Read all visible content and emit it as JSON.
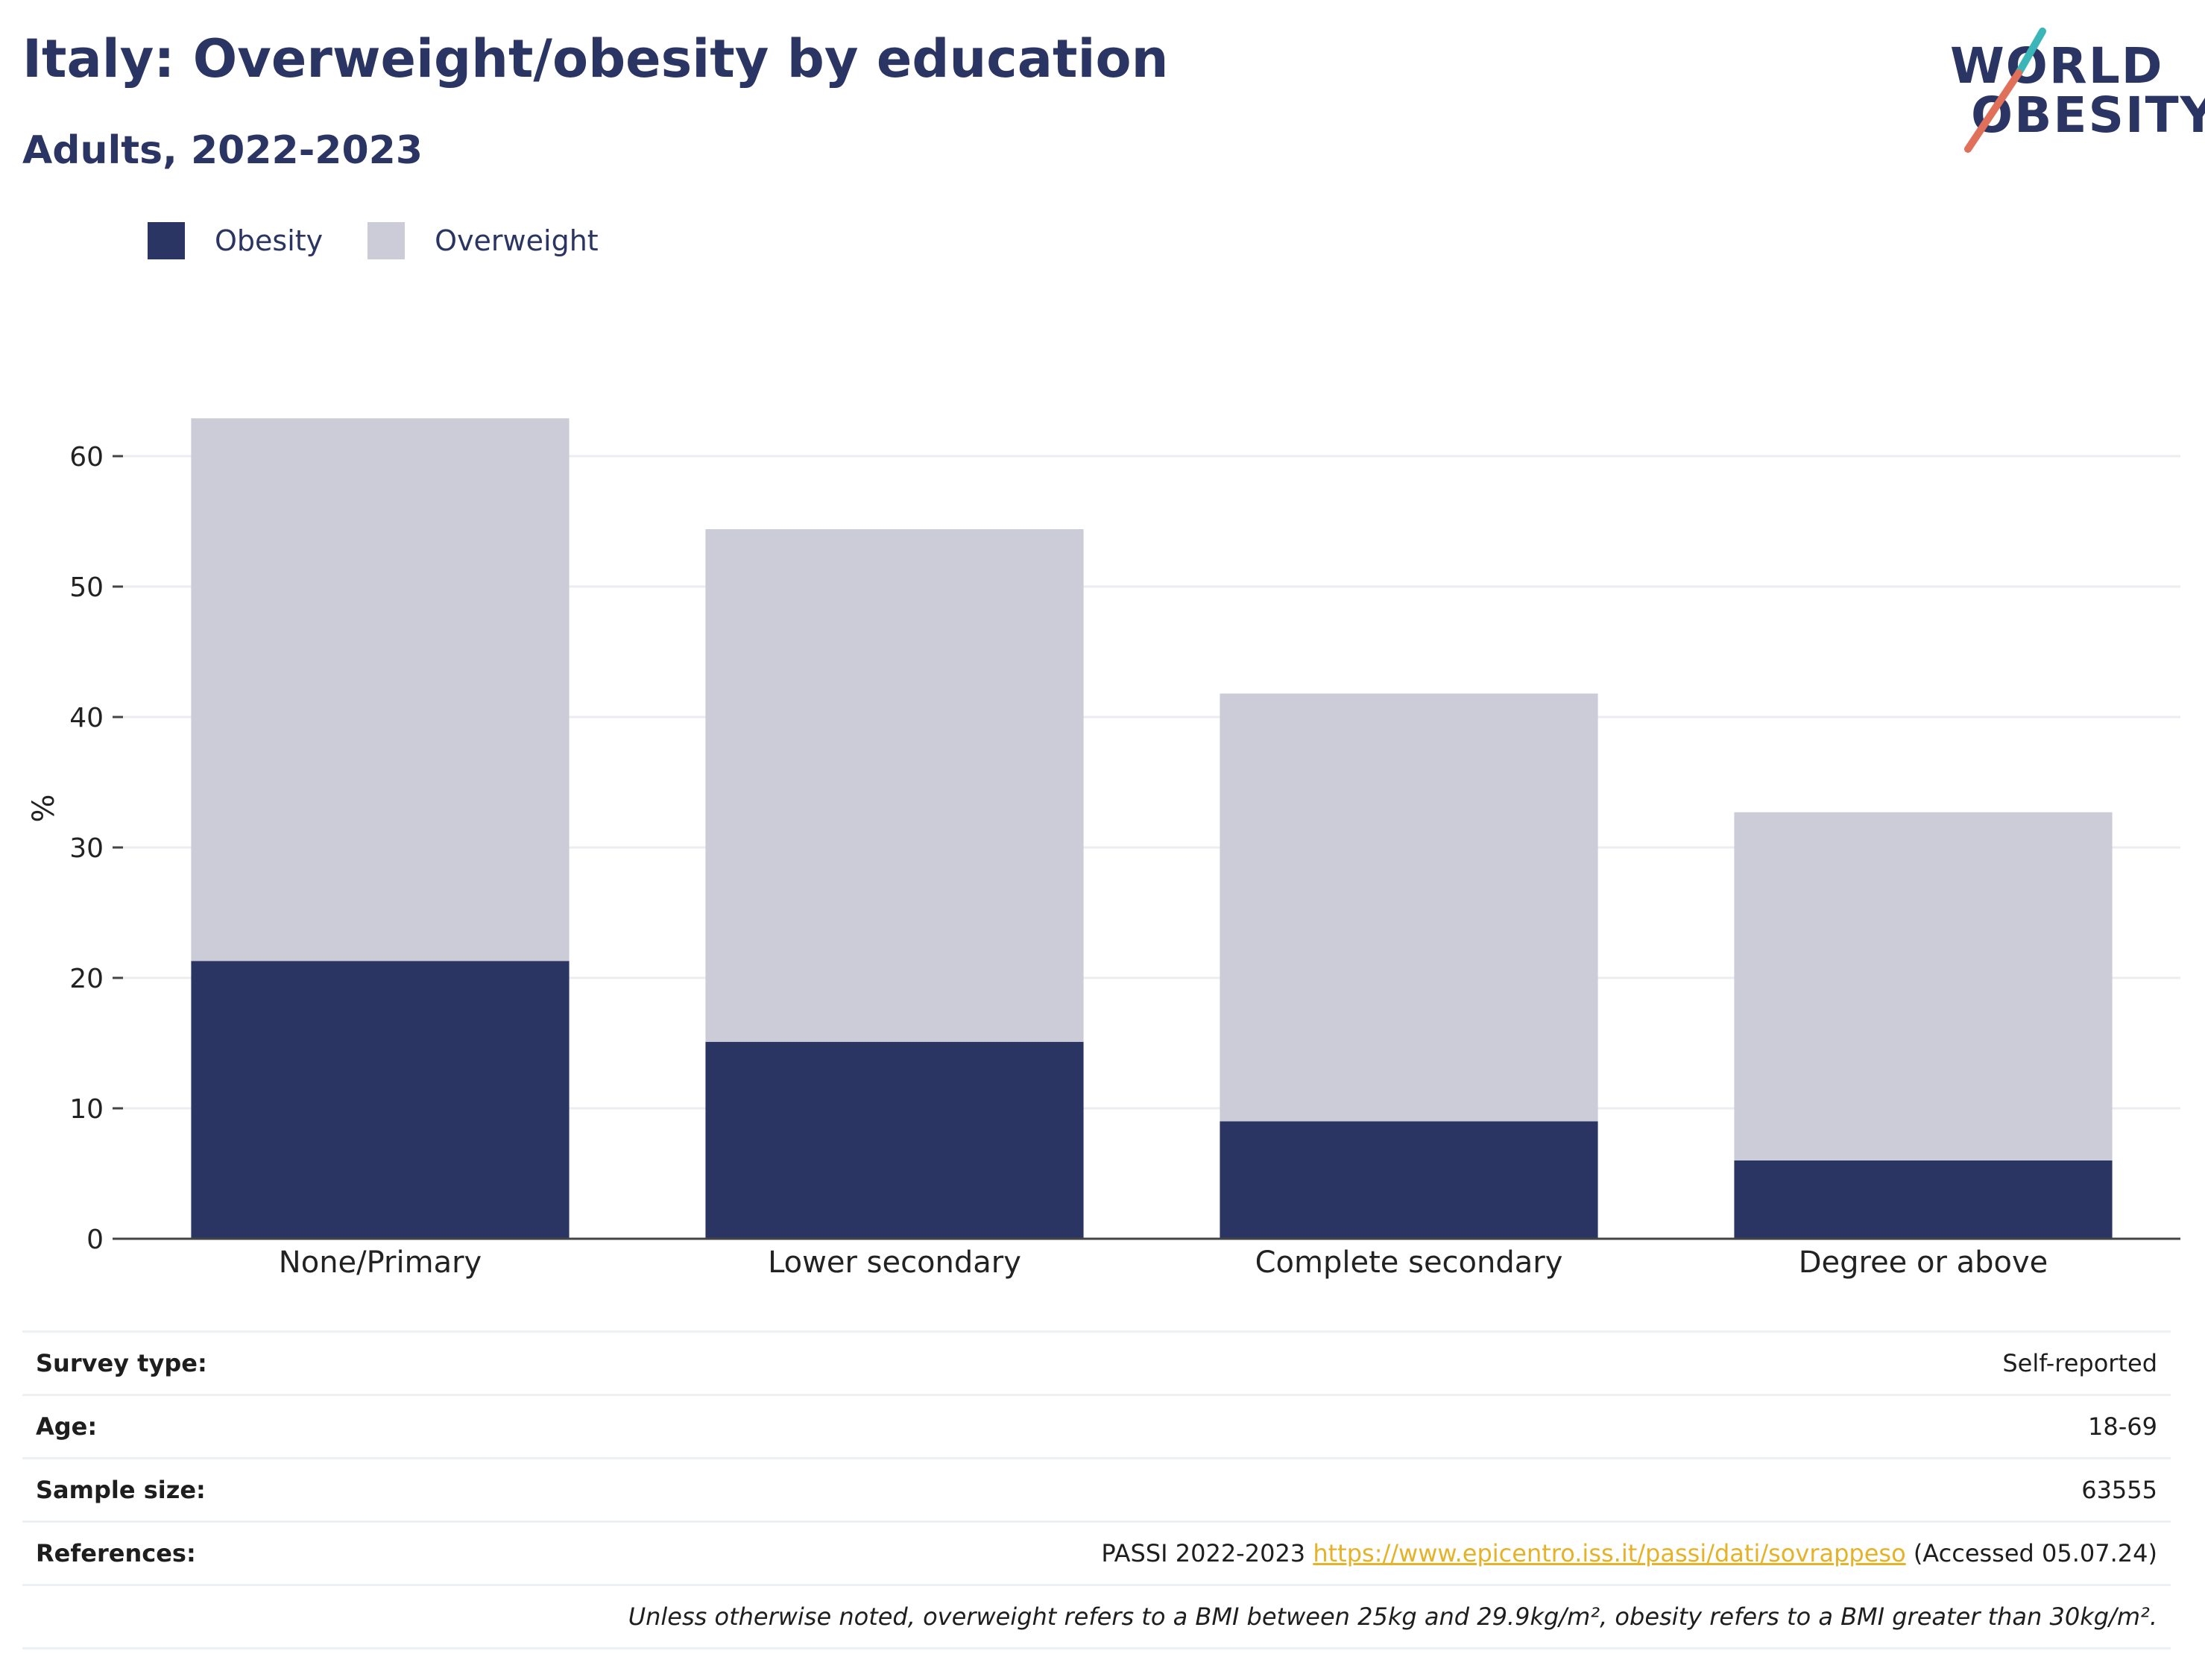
{
  "header": {
    "title": "Italy: Overweight/obesity by education",
    "subtitle": "Adults, 2022-2023",
    "logo_line1": "WORLD",
    "logo_line2": "OBESITY"
  },
  "colors": {
    "obesity": "#2b3563",
    "overweight": "#cbccd8",
    "text": "#2b3563",
    "grid": "#ebedf0",
    "link": "#e5b228"
  },
  "chart_data": {
    "type": "bar",
    "stacked": true,
    "title": "Italy: Overweight/obesity by education",
    "subtitle": "Adults, 2022-2023",
    "xlabel": "",
    "ylabel": "%",
    "ylim": [
      0,
      65
    ],
    "yticks": [
      0,
      10,
      20,
      30,
      40,
      50,
      60
    ],
    "grid": true,
    "legend_position": "top-left",
    "categories": [
      "None/Primary",
      "Lower secondary",
      "Complete secondary",
      "Degree or above"
    ],
    "series": [
      {
        "name": "Obesity",
        "color": "#2b3563",
        "values": [
          21.3,
          15.1,
          9.0,
          6.0
        ]
      },
      {
        "name": "Overweight",
        "color": "#cbccd8",
        "values": [
          41.6,
          39.3,
          32.8,
          26.7
        ]
      }
    ]
  },
  "meta": {
    "survey_type_label": "Survey type:",
    "survey_type_value": "Self-reported",
    "age_label": "Age:",
    "age_value": "18-69",
    "sample_size_label": "Sample size:",
    "sample_size_value": "63555",
    "references_label": "References:",
    "references_prefix": "PASSI 2022-2023",
    "references_link": "https://www.epicentro.iss.it/passi/dati/sovrappeso",
    "references_suffix": "(Accessed 05.07.24)",
    "note": "Unless otherwise noted, overweight refers to a BMI between 25kg and 29.9kg/m², obesity refers to a BMI greater than 30kg/m²."
  }
}
